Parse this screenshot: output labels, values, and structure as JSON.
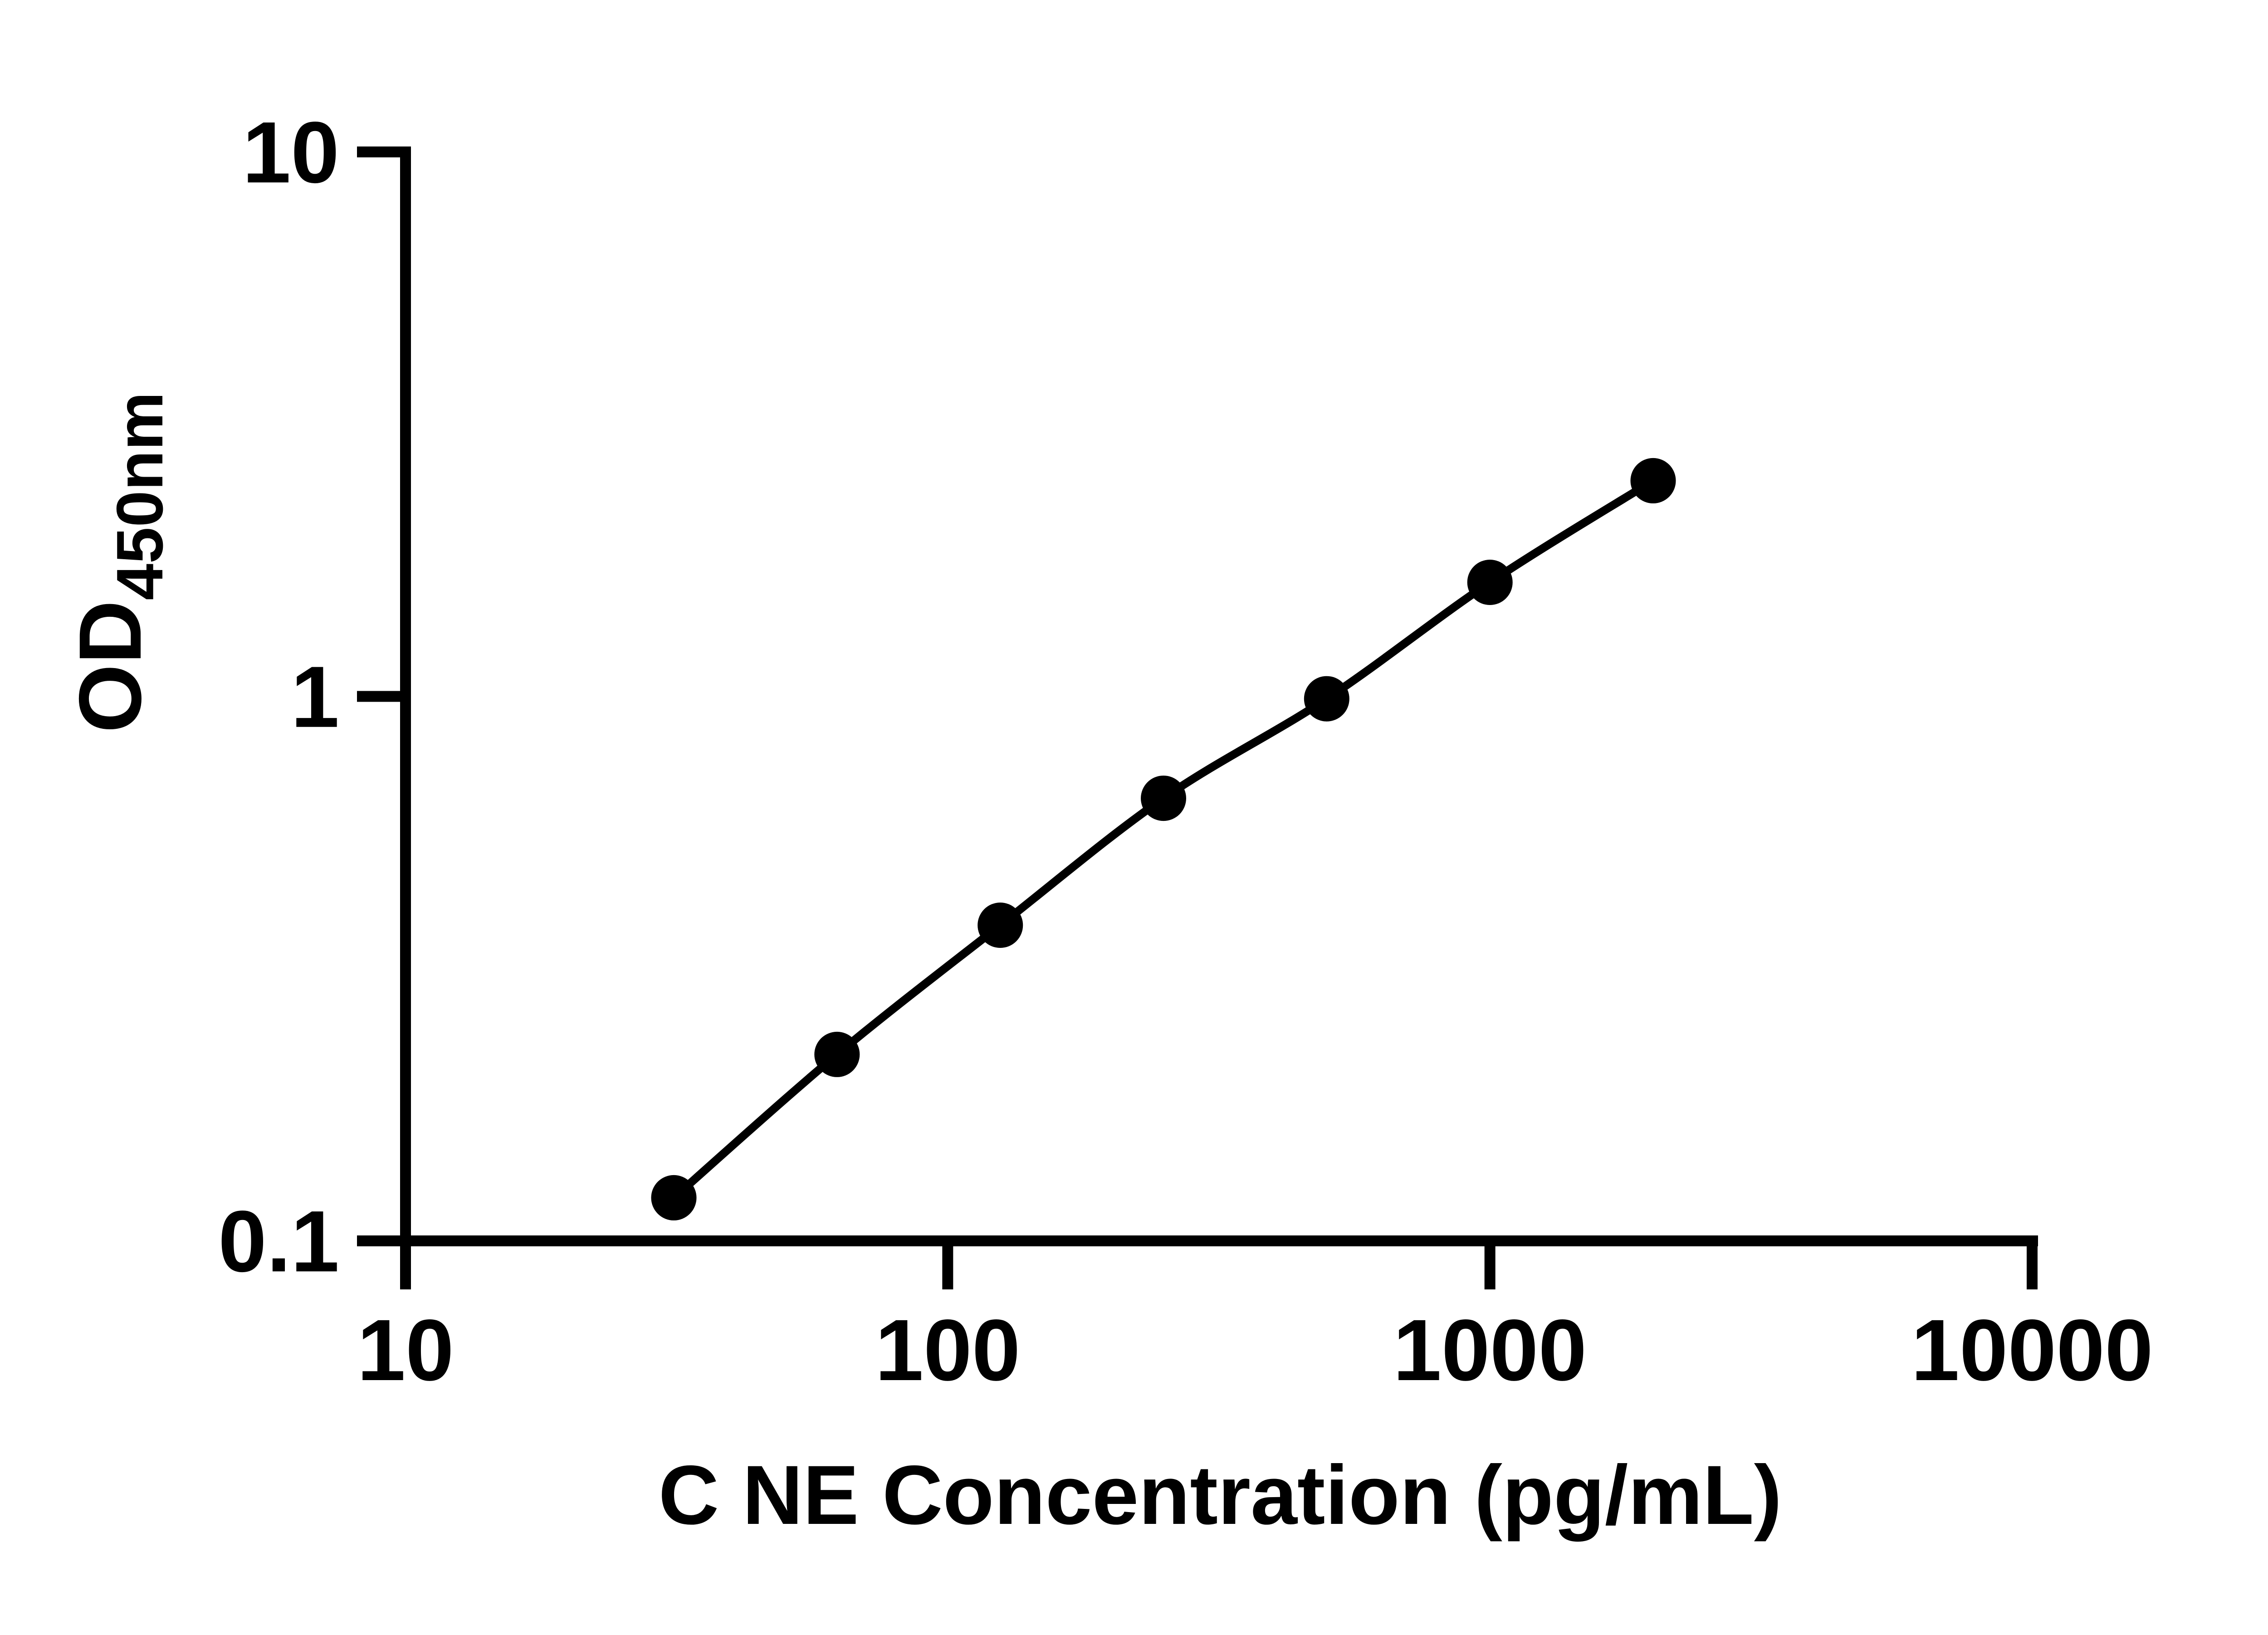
{
  "page": {
    "background_color": "#ffffff",
    "foreground_color": "#000000"
  },
  "chart_data": {
    "type": "line",
    "subtype": "scatter-with-fitted-curve",
    "title": "",
    "xlabel": "C NE Concentration (pg/mL)",
    "ylabel": "OD",
    "ylabel_sub": "450nm",
    "x_scale": "log10",
    "y_scale": "log10",
    "xlim": [
      10,
      10000
    ],
    "ylim": [
      0.1,
      10
    ],
    "grid": false,
    "legend": false,
    "x_ticks": [
      {
        "value": 10,
        "label": "10"
      },
      {
        "value": 100,
        "label": "100"
      },
      {
        "value": 1000,
        "label": "1000"
      },
      {
        "value": 10000,
        "label": "10000"
      }
    ],
    "y_ticks": [
      {
        "value": 10,
        "label": "10"
      },
      {
        "value": 1,
        "label": "1"
      },
      {
        "value": 0.1,
        "label": "0.1"
      }
    ],
    "series": [
      {
        "marker": "circle",
        "marker_color": "#000000",
        "line_color": "#000000",
        "points": [
          {
            "x": 31.25,
            "y": 0.12
          },
          {
            "x": 62.5,
            "y": 0.22
          },
          {
            "x": 125,
            "y": 0.38
          },
          {
            "x": 250,
            "y": 0.65
          },
          {
            "x": 500,
            "y": 0.99
          },
          {
            "x": 1000,
            "y": 1.62
          },
          {
            "x": 2000,
            "y": 2.49
          }
        ]
      }
    ]
  }
}
